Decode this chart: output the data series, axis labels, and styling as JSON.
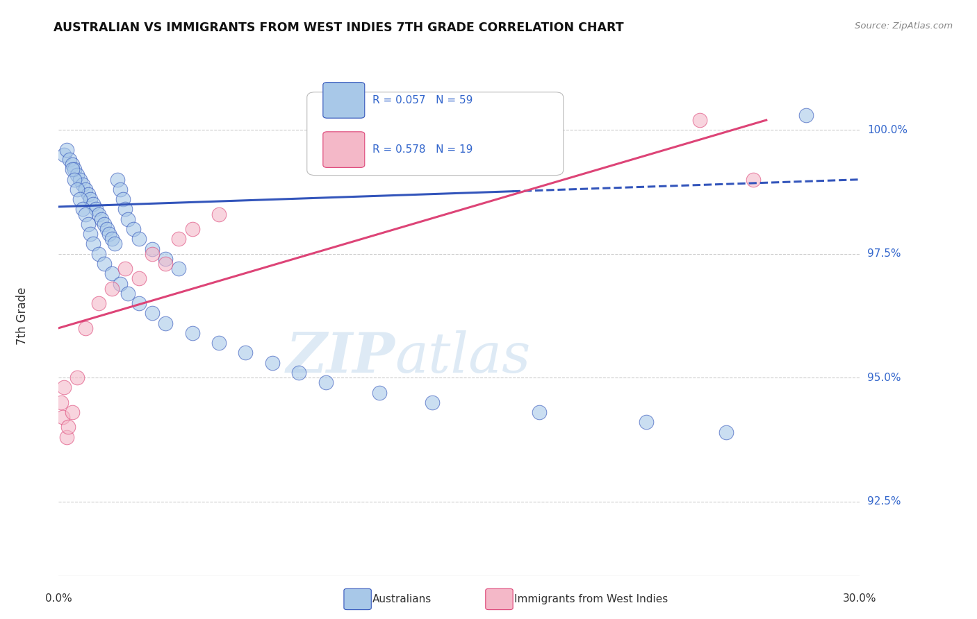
{
  "title": "AUSTRALIAN VS IMMIGRANTS FROM WEST INDIES 7TH GRADE CORRELATION CHART",
  "source": "Source: ZipAtlas.com",
  "ylabel": "7th Grade",
  "yticks": [
    92.5,
    95.0,
    97.5,
    100.0
  ],
  "ytick_labels": [
    "92.5%",
    "95.0%",
    "97.5%",
    "100.0%"
  ],
  "xmin": 0.0,
  "xmax": 30.0,
  "ymin": 91.0,
  "ymax": 101.5,
  "blue_R": 0.057,
  "blue_N": 59,
  "pink_R": 0.578,
  "pink_N": 19,
  "blue_color": "#a8c8e8",
  "pink_color": "#f4b8c8",
  "trend_blue": "#3355bb",
  "trend_pink": "#dd4477",
  "legend_label_blue": "Australians",
  "legend_label_pink": "Immigrants from West Indies",
  "watermark_zip": "ZIP",
  "watermark_atlas": "atlas",
  "blue_x": [
    0.2,
    0.3,
    0.4,
    0.5,
    0.6,
    0.7,
    0.8,
    0.9,
    1.0,
    1.1,
    1.2,
    1.3,
    1.4,
    1.5,
    1.6,
    1.7,
    1.8,
    1.9,
    2.0,
    2.1,
    2.2,
    2.3,
    2.4,
    2.5,
    2.6,
    2.8,
    3.0,
    3.5,
    4.0,
    4.5,
    0.5,
    0.6,
    0.7,
    0.8,
    0.9,
    1.0,
    1.1,
    1.2,
    1.3,
    1.5,
    1.7,
    2.0,
    2.3,
    2.6,
    3.0,
    3.5,
    4.0,
    5.0,
    6.0,
    7.0,
    8.0,
    9.0,
    10.0,
    12.0,
    14.0,
    18.0,
    22.0,
    25.0,
    28.0
  ],
  "blue_y": [
    99.5,
    99.6,
    99.4,
    99.3,
    99.2,
    99.1,
    99.0,
    98.9,
    98.8,
    98.7,
    98.6,
    98.5,
    98.4,
    98.3,
    98.2,
    98.1,
    98.0,
    97.9,
    97.8,
    97.7,
    99.0,
    98.8,
    98.6,
    98.4,
    98.2,
    98.0,
    97.8,
    97.6,
    97.4,
    97.2,
    99.2,
    99.0,
    98.8,
    98.6,
    98.4,
    98.3,
    98.1,
    97.9,
    97.7,
    97.5,
    97.3,
    97.1,
    96.9,
    96.7,
    96.5,
    96.3,
    96.1,
    95.9,
    95.7,
    95.5,
    95.3,
    95.1,
    94.9,
    94.7,
    94.5,
    94.3,
    94.1,
    93.9,
    100.3
  ],
  "pink_x": [
    0.1,
    0.15,
    0.2,
    0.3,
    0.35,
    0.5,
    0.7,
    1.0,
    1.5,
    2.0,
    2.5,
    3.0,
    3.5,
    4.0,
    4.5,
    5.0,
    6.0,
    24.0,
    26.0
  ],
  "pink_y": [
    94.5,
    94.2,
    94.8,
    93.8,
    94.0,
    94.3,
    95.0,
    96.0,
    96.5,
    96.8,
    97.2,
    97.0,
    97.5,
    97.3,
    97.8,
    98.0,
    98.3,
    100.2,
    99.0
  ],
  "blue_trend_x0": 0.0,
  "blue_trend_y0": 98.45,
  "blue_trend_x1": 30.0,
  "blue_trend_y1": 99.0,
  "blue_solid_end_x": 17.0,
  "pink_trend_x0": 0.0,
  "pink_trend_y0": 96.0,
  "pink_trend_x1": 26.5,
  "pink_trend_y1": 100.2
}
